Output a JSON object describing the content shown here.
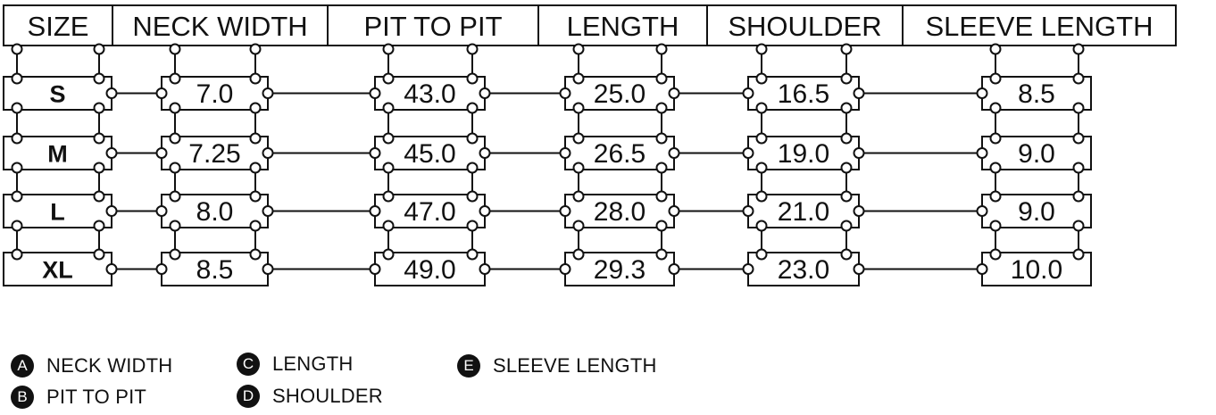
{
  "headers": [
    "SIZE",
    "NECK WIDTH",
    "PIT TO PIT",
    "LENGTH",
    "SHOULDER",
    "SLEEVE LENGTH"
  ],
  "rows": [
    {
      "size": "S",
      "values": [
        "7.0",
        "43.0",
        "25.0",
        "16.5",
        "8.5"
      ]
    },
    {
      "size": "M",
      "values": [
        "7.25",
        "45.0",
        "26.5",
        "19.0",
        "9.0"
      ]
    },
    {
      "size": "L",
      "values": [
        "8.0",
        "47.0",
        "28.0",
        "21.0",
        "9.0"
      ]
    },
    {
      "size": "XL",
      "values": [
        "8.5",
        "49.0",
        "29.3",
        "23.0",
        "10.0"
      ]
    }
  ],
  "legend": [
    {
      "badge": "A",
      "label": "NECK WIDTH"
    },
    {
      "badge": "B",
      "label": "PIT TO PIT"
    },
    {
      "badge": "C",
      "label": "LENGTH"
    },
    {
      "badge": "D",
      "label": "SHOULDER"
    },
    {
      "badge": "E",
      "label": "SLEEVE LENGTH"
    }
  ],
  "colors": {
    "ink": "#111111",
    "paper": "#ffffff"
  }
}
